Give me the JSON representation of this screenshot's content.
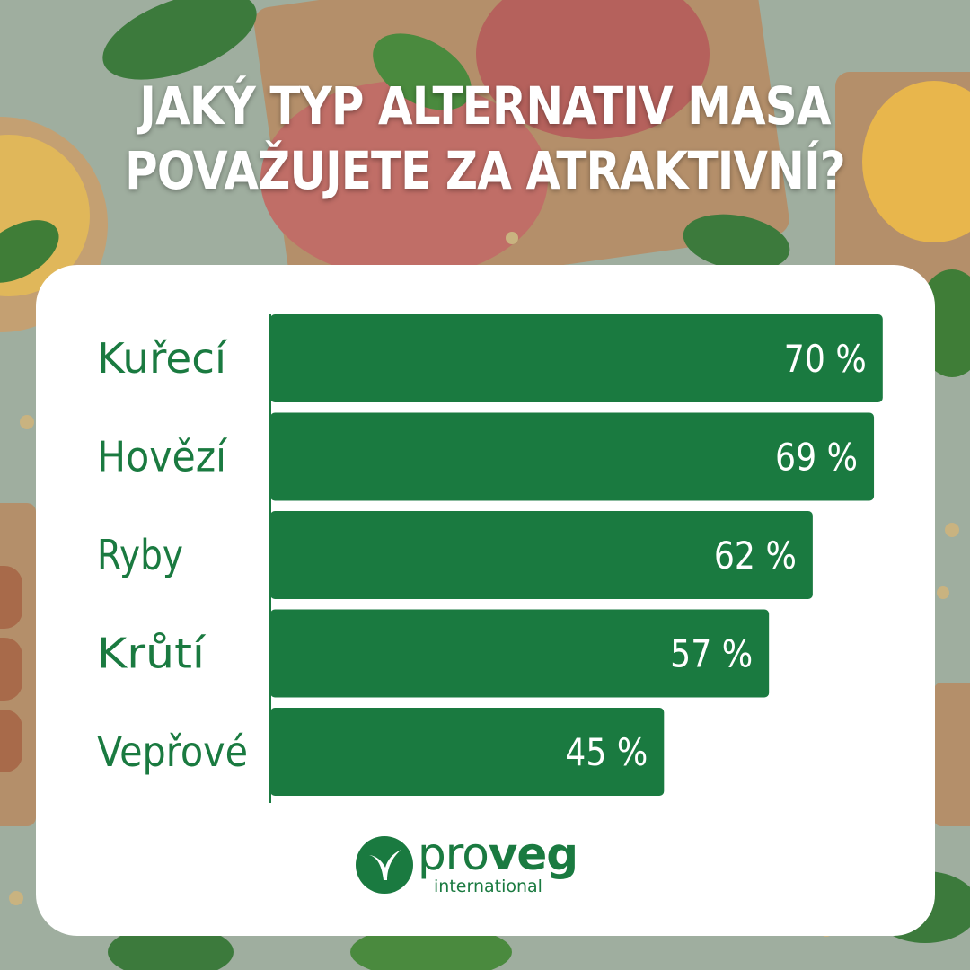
{
  "title": {
    "line1": "JAKÝ TYP ALTERNATIV MASA",
    "line2": "POVAŽUJETE ZA ATRAKTIVNÍ?"
  },
  "colors": {
    "bar": "#1a7a40",
    "label": "#1a7a40",
    "card": "#ffffff",
    "value_text": "#ffffff"
  },
  "chart_data": {
    "type": "bar",
    "orientation": "horizontal",
    "categories": [
      "Kuřecí",
      "Hovězí",
      "Ryby",
      "Krůtí",
      "Vepřové"
    ],
    "values": [
      70,
      69,
      62,
      57,
      45
    ],
    "value_labels": [
      "70 %",
      "69 %",
      "62 %",
      "57 %",
      "45 %"
    ],
    "unit": "%",
    "grid": false,
    "legend": "none"
  },
  "logo": {
    "brand_pre": "pro",
    "brand_bold": "veg",
    "sub": "international",
    "icon": "proveg-leaf-icon"
  }
}
